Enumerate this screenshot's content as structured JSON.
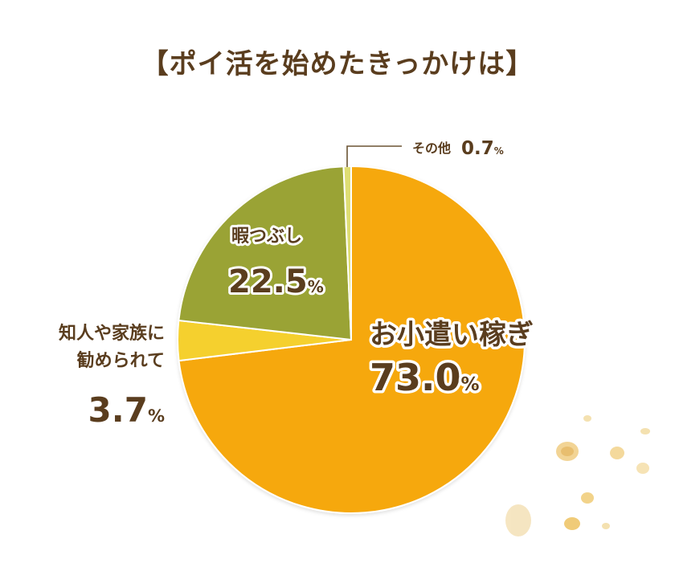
{
  "title": "【ポイ活を始めたきっかけは】",
  "chart_data": {
    "type": "pie",
    "title": "【ポイ活を始めたきっかけは】",
    "slices": [
      {
        "label": "お小遣い稼ぎ",
        "value": 73.0,
        "display": "73.0",
        "color": "#f6a80c"
      },
      {
        "label": "知人や家族に勧められて",
        "label_lines": [
          "知人や家族に",
          "勧められて"
        ],
        "value": 3.7,
        "display": "3.7",
        "color": "#f5d02f"
      },
      {
        "label": "暇つぶし",
        "value": 22.5,
        "display": "22.5",
        "color": "#9aa336"
      },
      {
        "label": "その他",
        "value": 0.7,
        "display": "0.7",
        "color": "#dedd73"
      }
    ],
    "unit": "%"
  }
}
